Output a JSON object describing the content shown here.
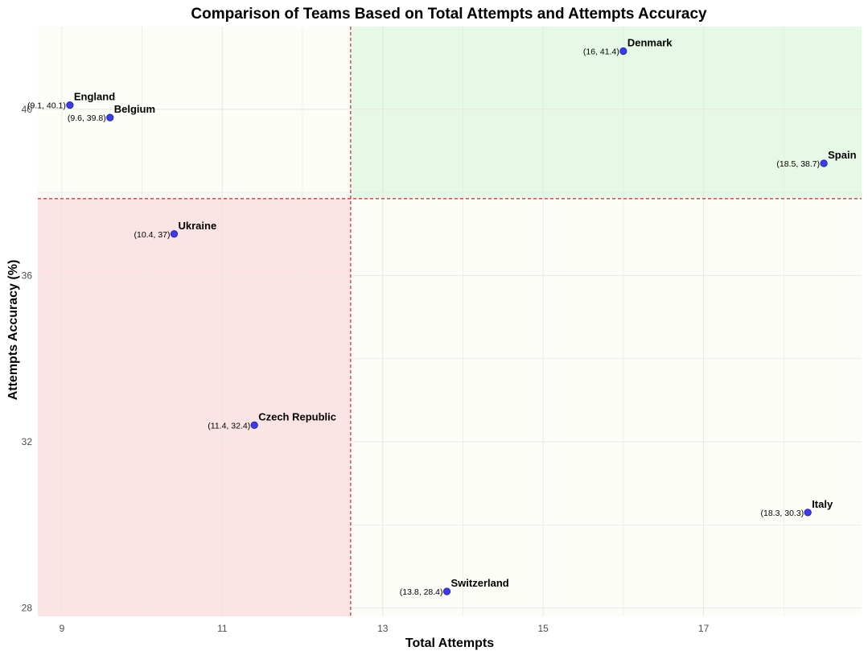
{
  "chart_data": {
    "type": "scatter",
    "title": "Comparison of Teams Based on Total Attempts and Attempts Accuracy",
    "xlabel": "Total Attempts",
    "ylabel": "Attempts Accuracy (%)",
    "xlim": [
      8.7,
      18.97
    ],
    "ylim": [
      27.8,
      41.99
    ],
    "x_ticks": [
      9,
      11,
      13,
      15,
      17
    ],
    "y_ticks": [
      28,
      32,
      36,
      40
    ],
    "quadrant_split": {
      "x": 12.6,
      "y": 37.85
    },
    "quadrant_colors": {
      "high_high": "#e6f9e6",
      "low_low": "#fce4e4",
      "mixed": "#fdfdf7"
    },
    "split_line_color": "#e02020",
    "point_color": "#3b3bf0",
    "grid": true,
    "points": [
      {
        "team": "England",
        "x": 9.1,
        "y": 40.1,
        "coord_label": "(9.1, 40.1)"
      },
      {
        "team": "Belgium",
        "x": 9.6,
        "y": 39.8,
        "coord_label": "(9.6, 39.8)"
      },
      {
        "team": "Denmark",
        "x": 16,
        "y": 41.4,
        "coord_label": "(16, 41.4)"
      },
      {
        "team": "Spain",
        "x": 18.5,
        "y": 38.7,
        "coord_label": "(18.5, 38.7)"
      },
      {
        "team": "Ukraine",
        "x": 10.4,
        "y": 37,
        "coord_label": "(10.4, 37)"
      },
      {
        "team": "Czech Republic",
        "x": 11.4,
        "y": 32.4,
        "coord_label": "(11.4, 32.4)"
      },
      {
        "team": "Italy",
        "x": 18.3,
        "y": 30.3,
        "coord_label": "(18.3, 30.3)"
      },
      {
        "team": "Switzerland",
        "x": 13.8,
        "y": 28.4,
        "coord_label": "(13.8, 28.4)"
      }
    ]
  }
}
